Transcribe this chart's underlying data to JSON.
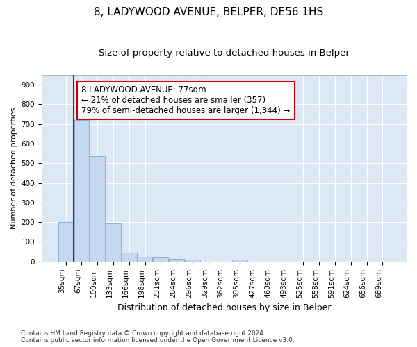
{
  "title1": "8, LADYWOOD AVENUE, BELPER, DE56 1HS",
  "title2": "Size of property relative to detached houses in Belper",
  "xlabel": "Distribution of detached houses by size in Belper",
  "ylabel": "Number of detached properties",
  "categories": [
    "35sqm",
    "67sqm",
    "100sqm",
    "133sqm",
    "166sqm",
    "198sqm",
    "231sqm",
    "264sqm",
    "296sqm",
    "329sqm",
    "362sqm",
    "395sqm",
    "427sqm",
    "460sqm",
    "493sqm",
    "525sqm",
    "558sqm",
    "591sqm",
    "624sqm",
    "656sqm",
    "689sqm"
  ],
  "values": [
    200,
    720,
    535,
    192,
    47,
    25,
    20,
    15,
    10,
    0,
    0,
    10,
    0,
    0,
    0,
    0,
    0,
    0,
    0,
    0,
    0
  ],
  "bar_color": "#c5d8ef",
  "bar_edge_color": "#7aadd4",
  "vline_x": 1.5,
  "vline_color": "#cc0000",
  "annotation_text": "8 LADYWOOD AVENUE: 77sqm\n← 21% of detached houses are smaller (357)\n79% of semi-detached houses are larger (1,344) →",
  "annotation_box_color": "#ffffff",
  "annotation_box_edge_color": "#cc0000",
  "ylim": [
    0,
    950
  ],
  "yticks": [
    0,
    100,
    200,
    300,
    400,
    500,
    600,
    700,
    800,
    900
  ],
  "background_color": "#dce9f5",
  "footer_text": "Contains HM Land Registry data © Crown copyright and database right 2024.\nContains public sector information licensed under the Open Government Licence v3.0.",
  "title1_fontsize": 11,
  "title2_fontsize": 9.5,
  "xlabel_fontsize": 9,
  "ylabel_fontsize": 8,
  "tick_fontsize": 7.5,
  "annotation_fontsize": 8.5,
  "footer_fontsize": 6.5
}
